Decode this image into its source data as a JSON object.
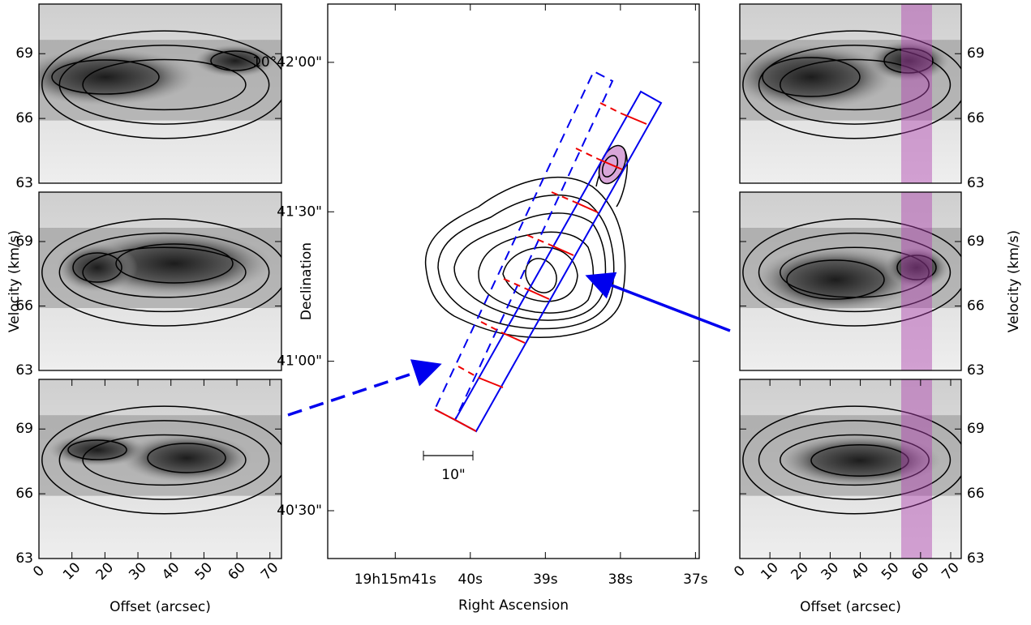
{
  "chart_data": [
    {
      "type": "image",
      "xlim": [
        0,
        73.5
      ],
      "ylim": [
        63,
        71.3
      ],
      "yticks": [
        63,
        66,
        69
      ]
    },
    {
      "type": "image",
      "xlim": [
        0,
        73.5
      ],
      "ylim": [
        63,
        71.3
      ],
      "yticks": [
        63,
        66,
        69
      ],
      "ylabel": "Velocity (km/s)"
    },
    {
      "type": "image",
      "xlim": [
        0,
        73.5
      ],
      "ylim": [
        63,
        71.3
      ],
      "yticks": [
        63,
        66,
        69
      ],
      "xticks": [
        0,
        10,
        20,
        30,
        40,
        50,
        60,
        70
      ],
      "xlabel": "Offset (arcsec)"
    },
    {
      "type": "contour",
      "xlabel": "Right Ascension",
      "ylabel": "Declination",
      "xlim": [
        41.9,
        36.95
      ],
      "ylim": [
        20.4,
        131.7
      ],
      "xticks": [
        {
          "value": 41,
          "label": "19h15m41s"
        },
        {
          "value": 40,
          "label": "40s"
        },
        {
          "value": 39,
          "label": "39s"
        },
        {
          "value": 38,
          "label": "38s"
        },
        {
          "value": 37,
          "label": "37s"
        }
      ],
      "yticks": [
        {
          "value": 30,
          "label": "40'30\""
        },
        {
          "value": 60,
          "label": "41'00\""
        },
        {
          "value": 90,
          "label": "41'30\""
        },
        {
          "value": 120,
          "label": "10°42'00\""
        }
      ],
      "annotation": "10\""
    },
    {
      "type": "image",
      "xlim": [
        0,
        73.5
      ],
      "ylim": [
        63,
        71.3
      ],
      "yticks": [
        63,
        66,
        69
      ]
    },
    {
      "type": "image",
      "xlim": [
        0,
        73.5
      ],
      "ylim": [
        63,
        71.3
      ],
      "yticks": [
        63,
        66,
        69
      ],
      "ylabel": "Velocity (km/s)"
    },
    {
      "type": "image",
      "xlim": [
        0,
        73.5
      ],
      "ylim": [
        63,
        71.3
      ],
      "yticks": [
        63,
        66,
        69
      ],
      "xticks": [
        0,
        10,
        20,
        30,
        40,
        50,
        60,
        70
      ],
      "xlabel": "Offset (arcsec)"
    }
  ]
}
